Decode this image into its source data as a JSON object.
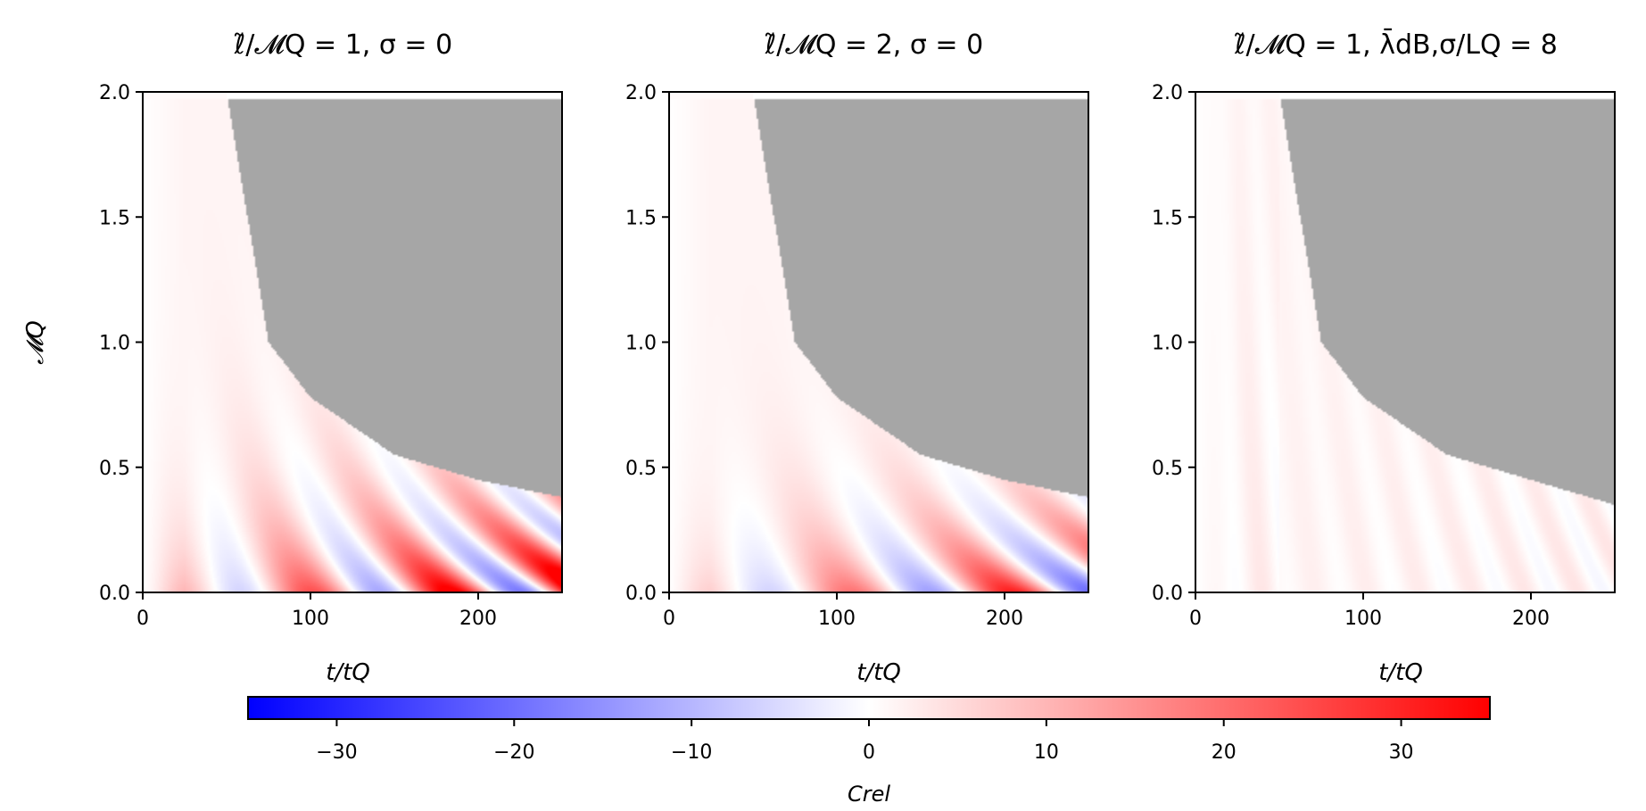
{
  "chart_data": [
    {
      "type": "heatmap",
      "title": "ℓ̃/𝓜Q = 1, σ = 0",
      "xlabel": "t/tQ",
      "ylabel": "𝓜Q",
      "xlim": [
        0,
        250
      ],
      "ylim": [
        0,
        2
      ],
      "xticks": [
        "0",
        "100",
        "200"
      ],
      "yticks": [
        "0.0",
        "0.5",
        "1.0",
        "1.5",
        "2.0"
      ],
      "masked_boundary": [
        [
          50,
          2.0
        ],
        [
          75,
          1.0
        ],
        [
          100,
          0.78
        ],
        [
          150,
          0.55
        ],
        [
          200,
          0.45
        ],
        [
          250,
          0.38
        ]
      ],
      "pattern": {
        "amp": 34,
        "decayM": 0.3,
        "freq": 0.075,
        "mFreq": 1.0,
        "phase": 0.4,
        "negBias": 0.55,
        "offset": 1.5
      }
    },
    {
      "type": "heatmap",
      "title": "ℓ̃/𝓜Q = 2, σ = 0",
      "xlabel": "t/tQ",
      "ylabel": "",
      "xlim": [
        0,
        250
      ],
      "ylim": [
        0,
        2
      ],
      "xticks": [
        "0",
        "100",
        "200"
      ],
      "yticks": [
        "0.0",
        "0.5",
        "1.0",
        "1.5",
        "2.0"
      ],
      "masked_boundary": [
        [
          50,
          2.0
        ],
        [
          75,
          1.0
        ],
        [
          100,
          0.78
        ],
        [
          150,
          0.55
        ],
        [
          200,
          0.45
        ],
        [
          250,
          0.38
        ]
      ],
      "pattern": {
        "amp": 28,
        "decayM": 0.25,
        "freq": 0.065,
        "mFreq": 1.0,
        "phase": 0.9,
        "negBias": 0.35,
        "offset": 1.5
      }
    },
    {
      "type": "heatmap",
      "title": "ℓ̃/𝓜Q = 1, λ̄dB,σ/LQ = 8",
      "xlabel": "t/tQ",
      "ylabel": "",
      "xlim": [
        0,
        250
      ],
      "ylim": [
        0,
        2
      ],
      "xticks": [
        "0",
        "100",
        "200"
      ],
      "yticks": [
        "0.0",
        "0.5",
        "1.0",
        "1.5",
        "2.0"
      ],
      "masked_boundary": [
        [
          50,
          2.0
        ],
        [
          75,
          1.0
        ],
        [
          100,
          0.78
        ],
        [
          150,
          0.55
        ],
        [
          200,
          0.45
        ],
        [
          250,
          0.35
        ]
      ],
      "pattern": {
        "amp": 5,
        "decayM": 1.4,
        "freq": 0.2,
        "mFreq": 0.3,
        "phase": 0.0,
        "negBias": 0.1,
        "offset": 1.2
      }
    }
  ],
  "colorbar": {
    "label": "Crel",
    "min": -35,
    "max": 35,
    "ticks": [
      -30,
      -20,
      -10,
      0,
      10,
      20,
      30
    ],
    "tick_labels": [
      "−30",
      "−20",
      "−10",
      "0",
      "10",
      "20",
      "30"
    ],
    "colors": {
      "low": "#0000ff",
      "mid": "#ffffff",
      "high": "#ff0000",
      "masked": "#a6a6a6"
    }
  }
}
